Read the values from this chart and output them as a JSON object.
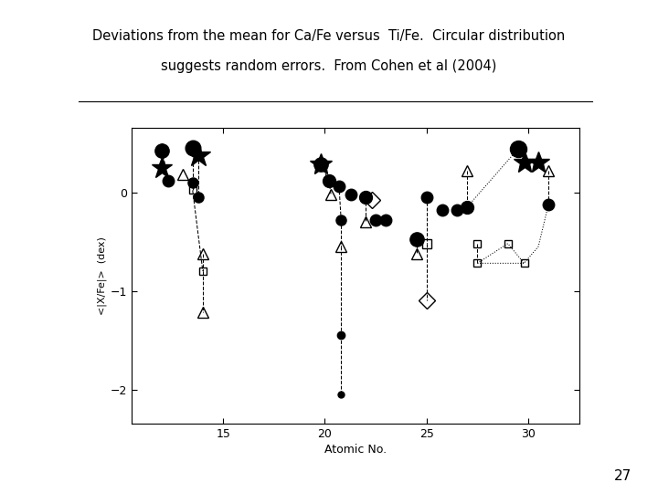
{
  "title_line1": "Deviations from the mean for Ca/Fe versus  Ti/Fe.  Circular distribution",
  "title_line2": "suggests random errors.  From Cohen et al (2004)",
  "xlabel": "Atomic No.",
  "ylabel": "<|X/Fe|>  (dex)",
  "xlim": [
    10.5,
    32.5
  ],
  "ylim": [
    -2.35,
    0.65
  ],
  "yticks": [
    0,
    -1,
    -2
  ],
  "xticks": [
    15,
    20,
    25,
    30
  ],
  "page_number": "27",
  "bg_color": "#ffffff"
}
